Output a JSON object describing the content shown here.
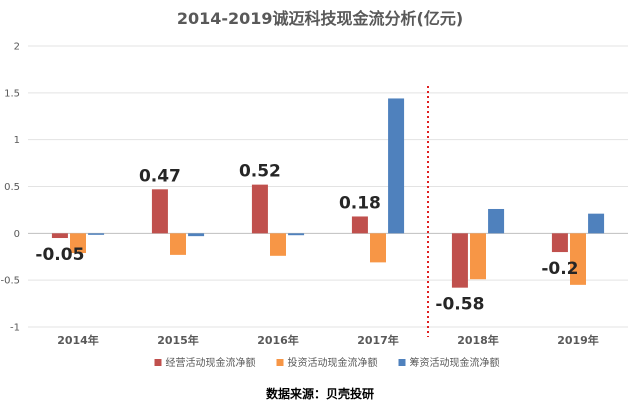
{
  "chart_data": {
    "type": "bar",
    "title": "2014-2019诚迈科技现金流分析(亿元)",
    "categories": [
      "2014年",
      "2015年",
      "2016年",
      "2017年",
      "2018年",
      "2019年"
    ],
    "series": [
      {
        "name": "经营活动现金流净额",
        "color": "#C0504D",
        "values": [
          -0.05,
          0.47,
          0.52,
          0.18,
          -0.58,
          -0.2
        ]
      },
      {
        "name": "投资活动现金流净额",
        "color": "#F79646",
        "values": [
          -0.21,
          -0.23,
          -0.24,
          -0.31,
          -0.49,
          -0.55
        ]
      },
      {
        "name": "筹资活动现金流净额",
        "color": "#4F81BD",
        "values": [
          0.0,
          -0.03,
          -0.02,
          1.44,
          0.26,
          0.21
        ]
      }
    ],
    "ylim": [
      -1,
      2
    ],
    "yticks": [
      -1,
      -0.5,
      0,
      0.5,
      1,
      1.5,
      2
    ],
    "ytick_labels": [
      "-1",
      "-0.5",
      "0",
      "0.5",
      "1",
      "1.5",
      "2"
    ],
    "data_labels": [
      {
        "series": 0,
        "index": 0,
        "text": "-0.05"
      },
      {
        "series": 0,
        "index": 1,
        "text": "0.47"
      },
      {
        "series": 0,
        "index": 2,
        "text": "0.52"
      },
      {
        "series": 0,
        "index": 3,
        "text": "0.18"
      },
      {
        "series": 0,
        "index": 4,
        "text": "-0.58"
      },
      {
        "series": 0,
        "index": 5,
        "text": "-0.2"
      }
    ],
    "grid": true,
    "divider_after_category": 3,
    "divider_color": "#E02020",
    "legend_position": "bottom",
    "xlabel": "",
    "ylabel": ""
  },
  "source_text": "数据来源：贝壳投研"
}
